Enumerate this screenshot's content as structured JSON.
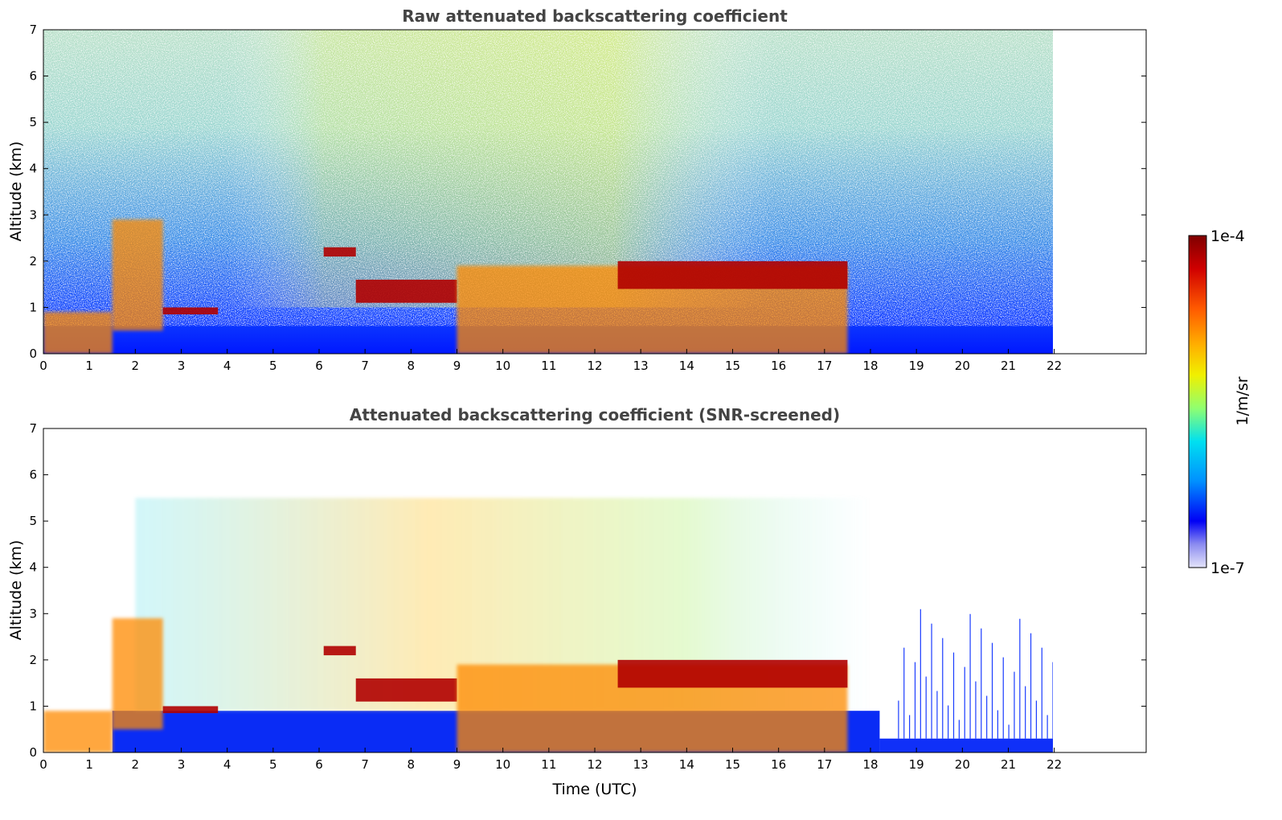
{
  "chart_data": [
    {
      "type": "heatmap",
      "title": "Raw attenuated backscattering coefficient",
      "xlabel": "",
      "ylabel": "Altitude (km)",
      "xlim": [
        0,
        24
      ],
      "ylim": [
        0,
        7
      ],
      "x_ticks": [
        "0",
        "1",
        "2",
        "3",
        "4",
        "5",
        "6",
        "7",
        "8",
        "9",
        "10",
        "11",
        "12",
        "13",
        "14",
        "15",
        "16",
        "17",
        "18",
        "19",
        "20",
        "21",
        "22"
      ],
      "y_ticks": [
        "0",
        "1",
        "2",
        "3",
        "4",
        "5",
        "6",
        "7"
      ],
      "data_end_time": 22,
      "features": [
        {
          "time": [
            0,
            1.5
          ],
          "altitude": [
            0,
            0.9
          ],
          "level": "high"
        },
        {
          "time": [
            1.5,
            2.6
          ],
          "altitude": [
            0.5,
            2.9
          ],
          "level": "high"
        },
        {
          "time": [
            2.6,
            3.8
          ],
          "altitude": [
            0.85,
            1.0
          ],
          "level": "very high"
        },
        {
          "time": [
            6.1,
            6.8
          ],
          "altitude": [
            2.1,
            2.3
          ],
          "level": "very high"
        },
        {
          "time": [
            6.8,
            9.0
          ],
          "altitude": [
            1.1,
            1.6
          ],
          "level": "very high"
        },
        {
          "time": [
            9.0,
            17.5
          ],
          "altitude": [
            0,
            1.9
          ],
          "level": "high"
        },
        {
          "time": [
            12.5,
            17.5
          ],
          "altitude": [
            1.4,
            2.0
          ],
          "level": "very high"
        }
      ]
    },
    {
      "type": "heatmap",
      "title": "Attenuated backscattering coefficient (SNR-screened)",
      "xlabel": "Time (UTC)",
      "ylabel": "Altitude (km)",
      "xlim": [
        0,
        24
      ],
      "ylim": [
        0,
        7
      ],
      "x_ticks": [
        "0",
        "1",
        "2",
        "3",
        "4",
        "5",
        "6",
        "7",
        "8",
        "9",
        "10",
        "11",
        "12",
        "13",
        "14",
        "15",
        "16",
        "17",
        "18",
        "19",
        "20",
        "21",
        "22"
      ],
      "y_ticks": [
        "0",
        "1",
        "2",
        "3",
        "4",
        "5",
        "6",
        "7"
      ],
      "data_end_time": 22,
      "features": [
        {
          "time": [
            0,
            1.5
          ],
          "altitude": [
            0,
            0.9
          ],
          "level": "high"
        },
        {
          "time": [
            1.5,
            2.6
          ],
          "altitude": [
            0.5,
            2.9
          ],
          "level": "high"
        },
        {
          "time": [
            2.6,
            3.8
          ],
          "altitude": [
            0.85,
            1.0
          ],
          "level": "very high"
        },
        {
          "time": [
            6.1,
            6.8
          ],
          "altitude": [
            2.1,
            2.3
          ],
          "level": "very high"
        },
        {
          "time": [
            6.8,
            9.0
          ],
          "altitude": [
            1.1,
            1.6
          ],
          "level": "very high"
        },
        {
          "time": [
            9.0,
            17.5
          ],
          "altitude": [
            0,
            1.9
          ],
          "level": "high"
        },
        {
          "time": [
            12.5,
            17.5
          ],
          "altitude": [
            1.4,
            2.0
          ],
          "level": "very high"
        }
      ]
    }
  ],
  "colorbar": {
    "label": "1/m/sr",
    "max_label": "1e-4",
    "min_label": "1e-7",
    "scale": "log",
    "colors": [
      "#7f0000",
      "#ff2000",
      "#ff9a00",
      "#f4f200",
      "#7dff7a",
      "#00e4f8",
      "#0080ff",
      "#0000f0"
    ]
  }
}
